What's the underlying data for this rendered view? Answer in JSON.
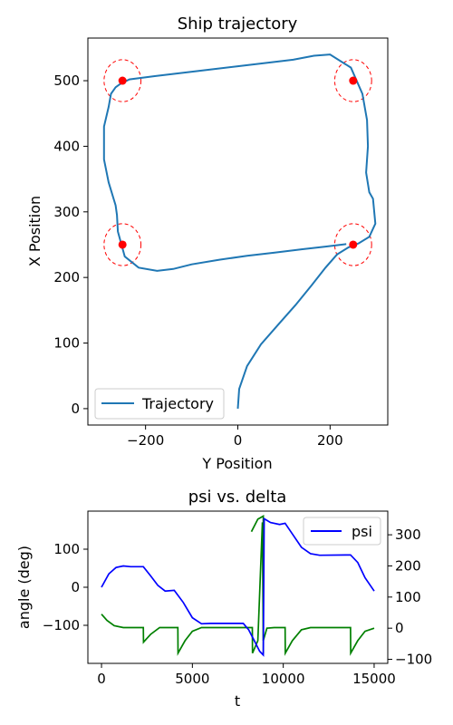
{
  "chart_data": [
    {
      "type": "line",
      "title": "Ship trajectory",
      "xlabel": "Y Position",
      "ylabel": "X Position",
      "xlim": [
        -325,
        325
      ],
      "ylim": [
        -25,
        565
      ],
      "x_ticks": [
        -200,
        0,
        200
      ],
      "y_ticks": [
        0,
        100,
        200,
        300,
        400,
        500
      ],
      "x_tick_labels": [
        "−200",
        "0",
        "200"
      ],
      "y_tick_labels": [
        "0",
        "100",
        "200",
        "300",
        "400",
        "500"
      ],
      "legend": {
        "location": "lower left",
        "entries": [
          "Trajectory"
        ]
      },
      "grid": false,
      "colors": {
        "trajectory": "#1f77b4",
        "waypoint": "#ff0000",
        "circle": "#ff0000"
      },
      "series": [
        {
          "name": "Trajectory",
          "points": [
            [
              0,
              0
            ],
            [
              3,
              30
            ],
            [
              20,
              65
            ],
            [
              50,
              98
            ],
            [
              90,
              130
            ],
            [
              125,
              158
            ],
            [
              160,
              188
            ],
            [
              190,
              215
            ],
            [
              215,
              235
            ],
            [
              240,
              246
            ],
            [
              262,
              252
            ],
            [
              285,
              262
            ],
            [
              298,
              282
            ],
            [
              293,
              320
            ],
            [
              285,
              330
            ],
            [
              278,
              360
            ],
            [
              282,
              400
            ],
            [
              280,
              440
            ],
            [
              270,
              480
            ],
            [
              245,
              520
            ],
            [
              200,
              540
            ],
            [
              165,
              538
            ],
            [
              120,
              532
            ],
            [
              60,
              527
            ],
            [
              0,
              522
            ],
            [
              -60,
              517
            ],
            [
              -120,
              512
            ],
            [
              -180,
              507
            ],
            [
              -235,
              502
            ],
            [
              -255,
              495
            ],
            [
              -265,
              490
            ],
            [
              -275,
              480
            ],
            [
              -280,
              460
            ],
            [
              -290,
              430
            ],
            [
              -290,
              380
            ],
            [
              -280,
              345
            ],
            [
              -265,
              310
            ],
            [
              -262,
              295
            ],
            [
              -260,
              270
            ],
            [
              -245,
              232
            ],
            [
              -215,
              215
            ],
            [
              -175,
              210
            ],
            [
              -140,
              213
            ],
            [
              -100,
              220
            ],
            [
              -40,
              227
            ],
            [
              20,
              233
            ],
            [
              80,
              238
            ],
            [
              140,
              243
            ],
            [
              190,
              247
            ],
            [
              235,
              251
            ]
          ]
        }
      ],
      "waypoints": [
        [
          -250,
          500
        ],
        [
          250,
          500
        ],
        [
          -250,
          250
        ],
        [
          250,
          250
        ]
      ]
    },
    {
      "type": "line",
      "title": "psi vs. delta",
      "xlabel": "t",
      "ylabel": "angle (deg)",
      "xlim": [
        -750,
        15750
      ],
      "ylim": [
        -200,
        200
      ],
      "y2lim": [
        -113,
        376
      ],
      "x_ticks": [
        0,
        5000,
        10000,
        15000
      ],
      "x_tick_labels": [
        "0",
        "5000",
        "10000",
        "15000"
      ],
      "y_ticks": [
        -100,
        0,
        100
      ],
      "y_tick_labels": [
        "−100",
        "0",
        "100"
      ],
      "y2_ticks": [
        -100,
        0,
        100,
        200,
        300
      ],
      "y2_tick_labels": [
        "−100",
        "0",
        "100",
        "200",
        "300"
      ],
      "legend": {
        "location": "upper right",
        "entries": [
          "psi"
        ]
      },
      "grid": false,
      "series": [
        {
          "name": "psi",
          "color": "#0000ff",
          "points": [
            [
              0,
              0
            ],
            [
              400,
              35
            ],
            [
              800,
              52
            ],
            [
              1200,
              56
            ],
            [
              1600,
              54
            ],
            [
              2300,
              54
            ],
            [
              2700,
              30
            ],
            [
              3100,
              5
            ],
            [
              3500,
              -10
            ],
            [
              4000,
              -8
            ],
            [
              4500,
              -40
            ],
            [
              5000,
              -80
            ],
            [
              5500,
              -96
            ],
            [
              6000,
              -95
            ],
            [
              7800,
              -95
            ],
            [
              8100,
              -112
            ],
            [
              8400,
              -140
            ],
            [
              8700,
              -168
            ],
            [
              8900,
              -178
            ],
            [
              8950,
              180
            ],
            [
              9300,
              170
            ],
            [
              9800,
              165
            ],
            [
              10100,
              168
            ],
            [
              10500,
              140
            ],
            [
              11000,
              105
            ],
            [
              11500,
              88
            ],
            [
              12000,
              84
            ],
            [
              13700,
              85
            ],
            [
              14100,
              65
            ],
            [
              14500,
              25
            ],
            [
              15000,
              -10
            ]
          ]
        },
        {
          "color": "#008000",
          "axis": "right",
          "points": [
            [
              0,
              45
            ],
            [
              300,
              25
            ],
            [
              700,
              8
            ],
            [
              1200,
              2
            ],
            [
              2300,
              2
            ],
            [
              2310,
              -45
            ],
            [
              2700,
              -20
            ],
            [
              3200,
              2
            ],
            [
              4200,
              2
            ],
            [
              4210,
              -80
            ],
            [
              4600,
              -40
            ],
            [
              5000,
              -10
            ],
            [
              5500,
              2
            ],
            [
              8300,
              2
            ],
            [
              8310,
              -80
            ],
            [
              8600,
              -40
            ],
            [
              8850,
              340
            ],
            [
              8900,
              -40
            ],
            [
              9100,
              0
            ],
            [
              9500,
              2
            ],
            [
              10100,
              2
            ],
            [
              10110,
              -80
            ],
            [
              10500,
              -40
            ],
            [
              11000,
              -5
            ],
            [
              11500,
              2
            ],
            [
              13700,
              2
            ],
            [
              13710,
              -80
            ],
            [
              14100,
              -40
            ],
            [
              14500,
              -10
            ],
            [
              15000,
              0
            ]
          ]
        },
        {
          "color": "#008000",
          "axis": "right",
          "points": [
            [
              8250,
              310
            ],
            [
              8600,
              350
            ],
            [
              8900,
              360
            ],
            [
              8905,
              -80
            ]
          ]
        }
      ]
    }
  ]
}
